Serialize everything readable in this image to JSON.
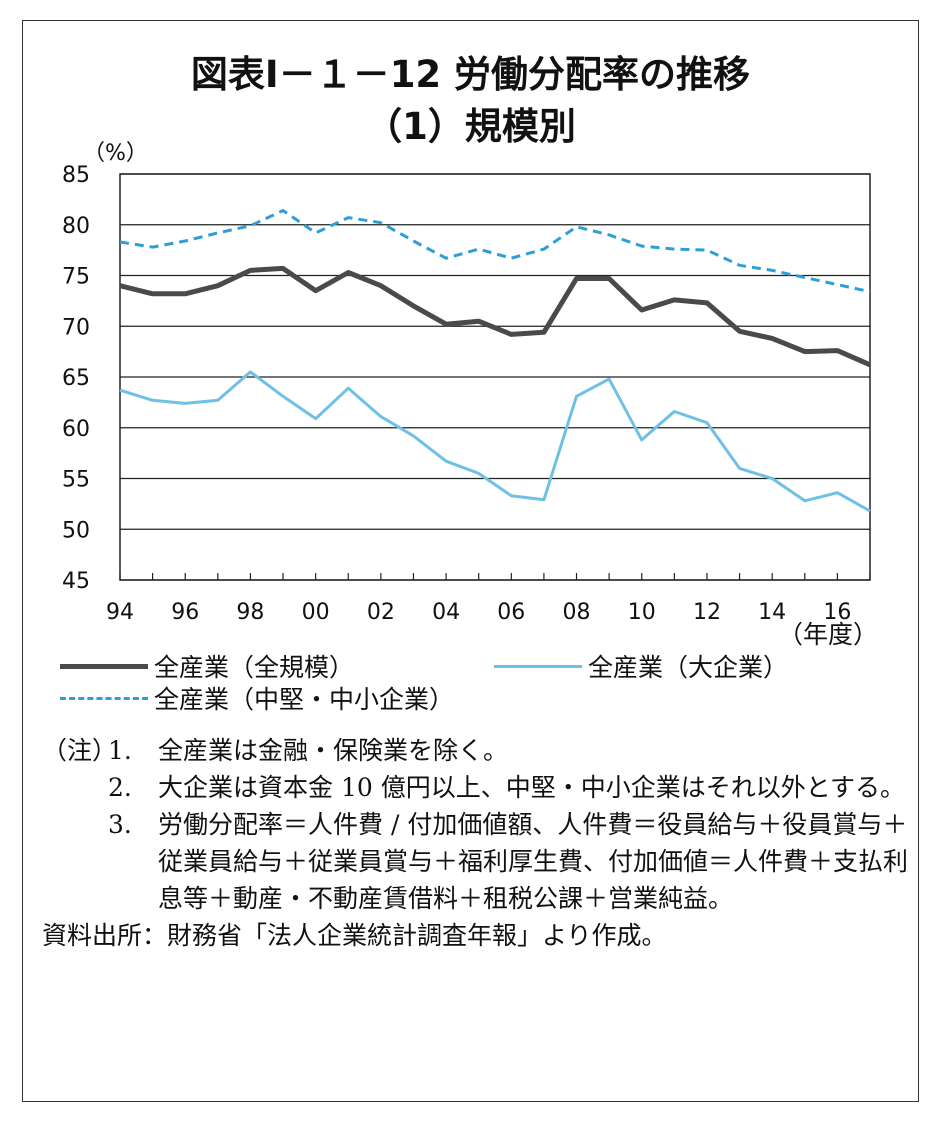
{
  "title_line1": "図表Ⅰ－１－12 労働分配率の推移",
  "title_line2": "（1）規模別",
  "colors": {
    "all_scale": "#4a4a4a",
    "large": "#6ec1e4",
    "small_medium": "#2e9ed6",
    "grid": "#222222"
  },
  "chart_data": {
    "type": "line",
    "y_unit_label": "（%）",
    "x_unit_label": "（年度）",
    "ylim": [
      45,
      85
    ],
    "y_ticks": [
      45,
      50,
      55,
      60,
      65,
      70,
      75,
      80,
      85
    ],
    "x": [
      1994,
      1995,
      1996,
      1997,
      1998,
      1999,
      2000,
      2001,
      2002,
      2003,
      2004,
      2005,
      2006,
      2007,
      2008,
      2009,
      2010,
      2011,
      2012,
      2013,
      2014,
      2015,
      2016,
      2017
    ],
    "x_tick_labels": [
      "94",
      "96",
      "98",
      "00",
      "02",
      "04",
      "06",
      "08",
      "10",
      "12",
      "14",
      "16"
    ],
    "grid": "horizontal",
    "series": [
      {
        "name": "全産業（全規模）",
        "style": "solid-thick",
        "values": [
          74.0,
          73.2,
          73.2,
          74.0,
          75.5,
          75.7,
          73.5,
          75.3,
          74.0,
          72.0,
          70.2,
          70.5,
          69.2,
          69.4,
          74.7,
          74.7,
          71.6,
          72.6,
          72.3,
          69.5,
          68.8,
          67.5,
          67.6,
          66.2
        ]
      },
      {
        "name": "全産業（大企業）",
        "style": "solid",
        "values": [
          63.7,
          62.7,
          62.4,
          62.7,
          65.5,
          63.1,
          60.9,
          63.9,
          61.1,
          59.2,
          56.7,
          55.5,
          53.3,
          52.9,
          63.1,
          64.8,
          58.8,
          61.6,
          60.5,
          56.0,
          55.0,
          52.8,
          53.6,
          51.8
        ]
      },
      {
        "name": "全産業（中堅・中小企業）",
        "style": "dashed",
        "values": [
          78.3,
          77.8,
          78.4,
          79.2,
          79.9,
          81.4,
          79.2,
          80.7,
          80.2,
          78.4,
          76.7,
          77.6,
          76.7,
          77.6,
          79.8,
          79.0,
          77.9,
          77.6,
          77.5,
          76.0,
          75.5,
          74.8,
          74.1,
          73.4
        ]
      }
    ]
  },
  "legend": {
    "item1": "全産業（全規模）",
    "item2": "全産業（大企業）",
    "item3": "全産業（中堅・中小企業）"
  },
  "notes": {
    "tag": "（注）",
    "n1_num": "1.",
    "n1_text": "全産業は金融・保険業を除く。",
    "n2_num": "2.",
    "n2_text": "大企業は資本金 10 億円以上、中堅・中小企業はそれ以外とする。",
    "n3_num": "3.",
    "n3_text": "労働分配率＝人件費 / 付加価値額、人件費＝役員給与＋役員賞与＋従業員給与＋従業員賞与＋福利厚生費、付加価値＝人件費＋支払利息等＋動産・不動産賃借料＋租税公課＋営業純益。",
    "source": "資料出所：財務省「法人企業統計調査年報」より作成。"
  }
}
